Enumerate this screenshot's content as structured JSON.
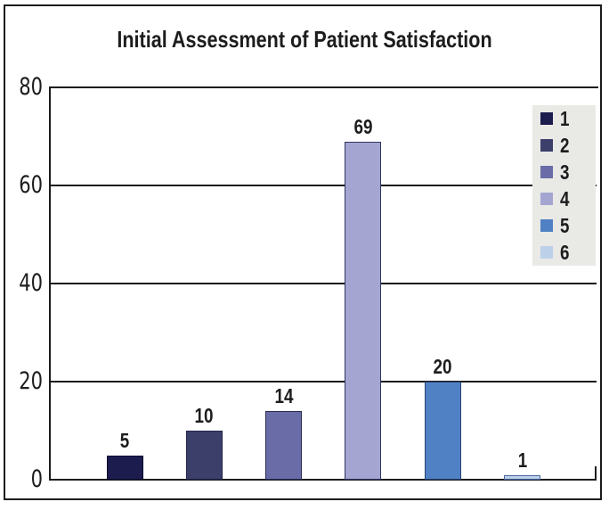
{
  "chart_data": {
    "type": "bar",
    "title": "Initial Assessment of Patient Satisfaction",
    "categories": [
      "1",
      "2",
      "3",
      "4",
      "5",
      "6"
    ],
    "values": [
      5,
      10,
      14,
      69,
      20,
      1
    ],
    "data_labels": [
      "5",
      "10",
      "14",
      "69",
      "20",
      "1"
    ],
    "xlabel": "",
    "ylabel": "",
    "ylim": [
      0,
      80
    ],
    "yticks": [
      0,
      20,
      40,
      60,
      80
    ],
    "grid": true,
    "legend_position": "right",
    "legend_labels": [
      "1",
      "2",
      "3",
      "4",
      "5",
      "6"
    ],
    "bar_colors": [
      "#1c1c4e",
      "#3d3f6b",
      "#6a6ca7",
      "#a5a5d2",
      "#5081c4",
      "#bcd0ea"
    ],
    "bar_border_colors": [
      "#0d0d30",
      "#23254a",
      "#2a2c55",
      "#303560",
      "#27416f",
      "#4a69a2"
    ]
  },
  "colors": {
    "text": "#1d1d1d",
    "axis": "#1c1c1c",
    "legend_background": "#e9e9e6",
    "background": "#ffffff"
  }
}
